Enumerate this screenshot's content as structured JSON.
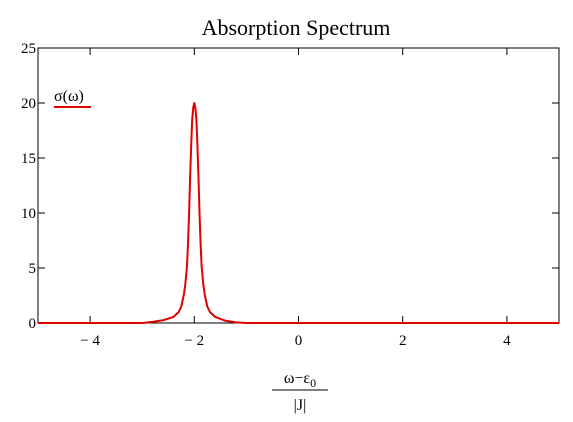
{
  "chart_data": {
    "type": "line",
    "title": "Absorption Spectrum",
    "xlabel": {
      "numerator": "ω−ε",
      "numerator_subscript": "0",
      "denominator": "|J|"
    },
    "ylabel": "",
    "xlim": [
      -5,
      5
    ],
    "ylim": [
      0,
      25
    ],
    "x_ticks": [
      -4,
      -2,
      0,
      2,
      4
    ],
    "x_tick_labels": [
      "− 4",
      "− 2",
      "0",
      "2",
      "4"
    ],
    "y_ticks": [
      0,
      5,
      10,
      15,
      20,
      25
    ],
    "y_tick_labels": [
      "0",
      "5",
      "10",
      "15",
      "20",
      "25"
    ],
    "grid": false,
    "legend": {
      "position": "top-left",
      "entries": [
        "σ(ω)"
      ]
    },
    "series": [
      {
        "name": "σ(ω)",
        "color": "#e00000",
        "x": [
          -5,
          -3.0,
          -2.8,
          -2.6,
          -2.4,
          -2.3,
          -2.25,
          -2.2,
          -2.17,
          -2.14,
          -2.12,
          -2.1,
          -2.08,
          -2.06,
          -2.04,
          -2.02,
          -2.0,
          -1.98,
          -1.96,
          -1.94,
          -1.92,
          -1.9,
          -1.88,
          -1.86,
          -1.83,
          -1.8,
          -1.75,
          -1.7,
          -1.6,
          -1.4,
          -1.2,
          -1.0,
          0,
          5
        ],
        "y": [
          0,
          0,
          0.1,
          0.25,
          0.55,
          1.0,
          1.5,
          2.6,
          3.6,
          5.2,
          7.2,
          10.0,
          13.2,
          16.2,
          18.5,
          19.6,
          20.0,
          19.6,
          18.5,
          16.2,
          13.2,
          10.0,
          7.2,
          5.2,
          3.6,
          2.6,
          1.5,
          1.0,
          0.55,
          0.2,
          0.05,
          0,
          0,
          0
        ]
      }
    ]
  }
}
